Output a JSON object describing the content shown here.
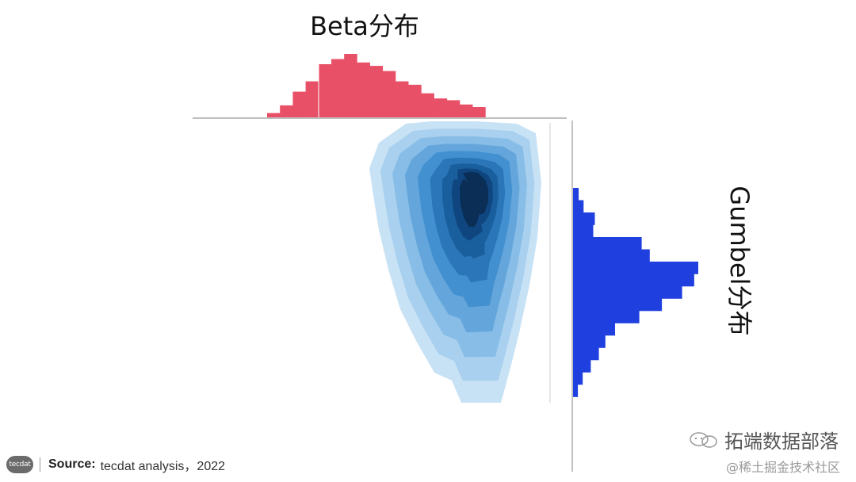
{
  "titles": {
    "top": "Beta分布",
    "right": "Gumbel分布"
  },
  "source": {
    "label": "Source:",
    "text": " tecdat analysis，2022"
  },
  "logo": {
    "text": "tecdat"
  },
  "watermark": {
    "main": "拓端数据部落",
    "sub": "@稀土掘金技术社区"
  },
  "colors": {
    "beta": "#e85068",
    "gumbel": "#1f3fdf",
    "axis": "#999999",
    "kde_dark": "#08203a",
    "kde_light": "#c8e2f5"
  },
  "chart_data": [
    {
      "name": "beta-histogram",
      "type": "bar",
      "title": "Beta分布",
      "orientation": "vertical",
      "x": [
        0.05,
        0.1,
        0.15,
        0.2,
        0.25,
        0.3,
        0.35,
        0.4,
        0.45,
        0.5,
        0.55,
        0.6,
        0.65,
        0.7,
        0.75,
        0.8,
        0.85
      ],
      "values": [
        5,
        14,
        30,
        42,
        62,
        68,
        74,
        64,
        60,
        54,
        42,
        38,
        28,
        22,
        20,
        15,
        12
      ]
    },
    {
      "name": "gumbel-histogram",
      "type": "bar",
      "title": "Gumbel分布",
      "orientation": "horizontal",
      "x": [
        1,
        2,
        3,
        4,
        5,
        6,
        7,
        8,
        9,
        10,
        11,
        12,
        13,
        14,
        15,
        16,
        17
      ],
      "values": [
        7,
        13,
        27,
        25,
        85,
        95,
        155,
        150,
        135,
        110,
        82,
        52,
        40,
        32,
        22,
        12,
        6
      ]
    },
    {
      "name": "joint-kde",
      "type": "heatmap",
      "title": "",
      "levels": [
        1,
        2,
        3,
        4,
        5,
        6,
        7,
        8,
        9
      ]
    }
  ]
}
